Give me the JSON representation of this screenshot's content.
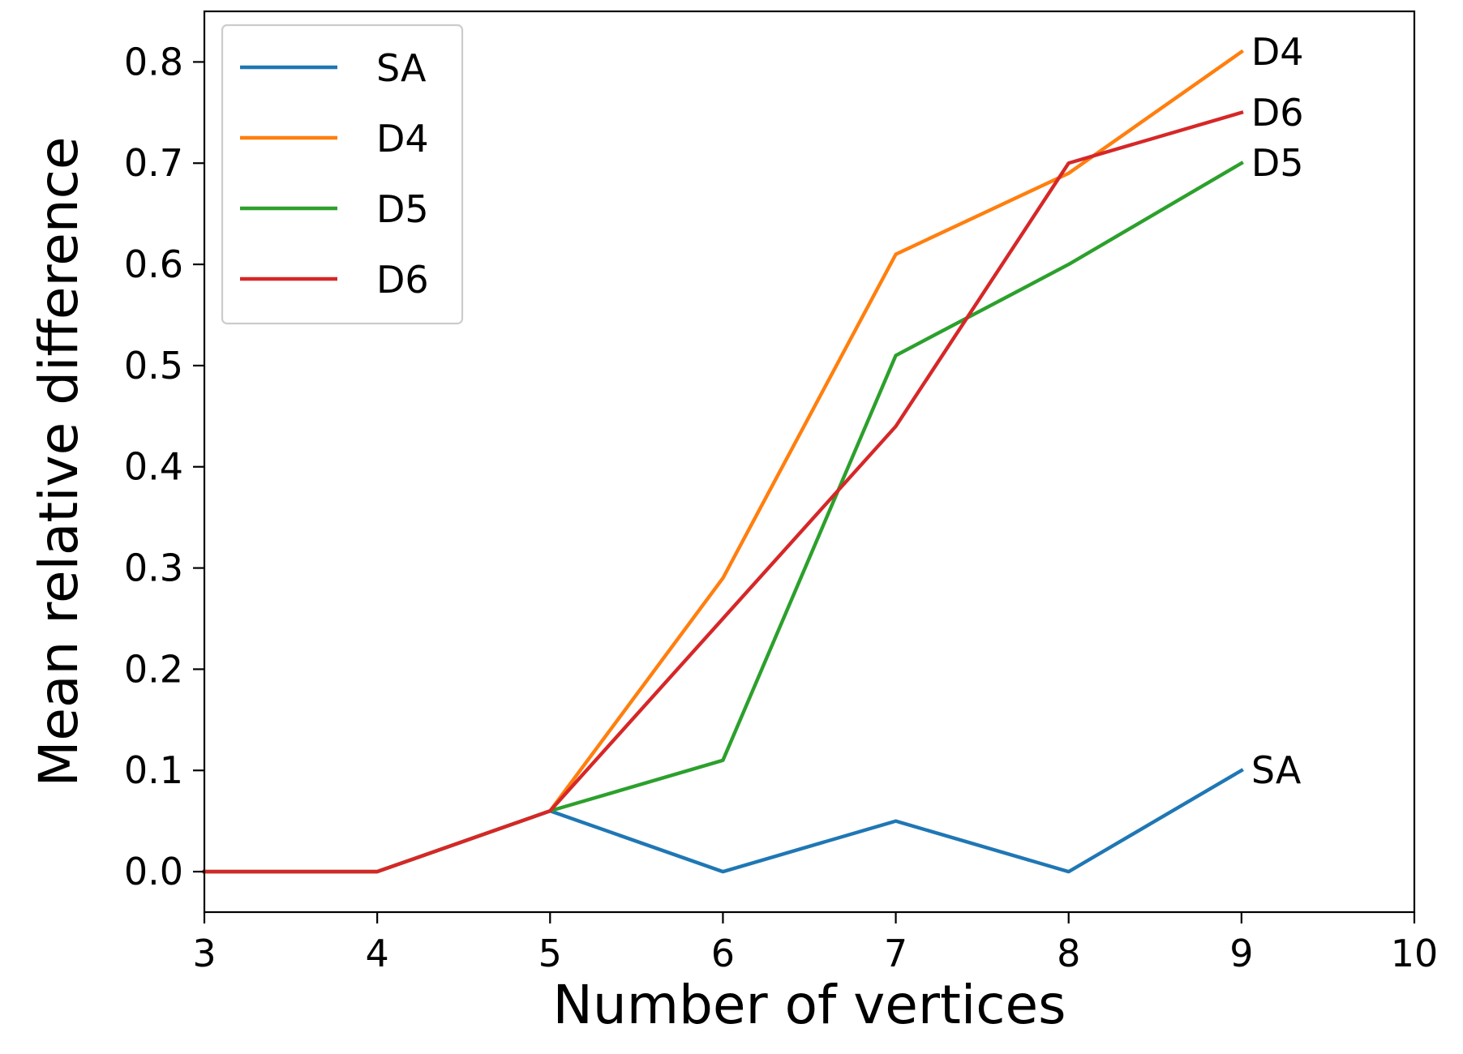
{
  "chart_data": {
    "type": "line",
    "xlabel": "Number of vertices",
    "ylabel": "Mean relative difference",
    "xlim": [
      3,
      10
    ],
    "ylim": [
      -0.04,
      0.85
    ],
    "xticks": [
      3,
      4,
      5,
      6,
      7,
      8,
      9,
      10
    ],
    "xtick_labels": [
      "3",
      "4",
      "5",
      "6",
      "7",
      "8",
      "9",
      "10"
    ],
    "yticks": [
      0.0,
      0.1,
      0.2,
      0.3,
      0.4,
      0.5,
      0.6,
      0.7,
      0.8
    ],
    "ytick_labels": [
      "0.0",
      "0.1",
      "0.2",
      "0.3",
      "0.4",
      "0.5",
      "0.6",
      "0.7",
      "0.8"
    ],
    "grid": false,
    "legend_position": "top-left",
    "series": [
      {
        "name": "SA",
        "color": "#1f77b4",
        "end_label": "SA",
        "x": [
          3,
          4,
          5,
          6,
          7,
          8,
          9
        ],
        "y": [
          0.0,
          0.0,
          0.06,
          0.0,
          0.05,
          0.0,
          0.1
        ]
      },
      {
        "name": "D4",
        "color": "#ff7f0e",
        "end_label": "D4",
        "x": [
          3,
          4,
          5,
          6,
          7,
          8,
          9
        ],
        "y": [
          0.0,
          0.0,
          0.06,
          0.29,
          0.61,
          0.69,
          0.81
        ]
      },
      {
        "name": "D5",
        "color": "#2ca02c",
        "end_label": "D5",
        "x": [
          3,
          4,
          5,
          6,
          7,
          8,
          9
        ],
        "y": [
          0.0,
          0.0,
          0.06,
          0.11,
          0.51,
          0.6,
          0.7
        ]
      },
      {
        "name": "D6",
        "color": "#d62728",
        "end_label": "D6",
        "x": [
          3,
          4,
          5,
          6,
          7,
          8,
          9
        ],
        "y": [
          0.0,
          0.0,
          0.06,
          0.25,
          0.44,
          0.7,
          0.75
        ]
      }
    ]
  }
}
